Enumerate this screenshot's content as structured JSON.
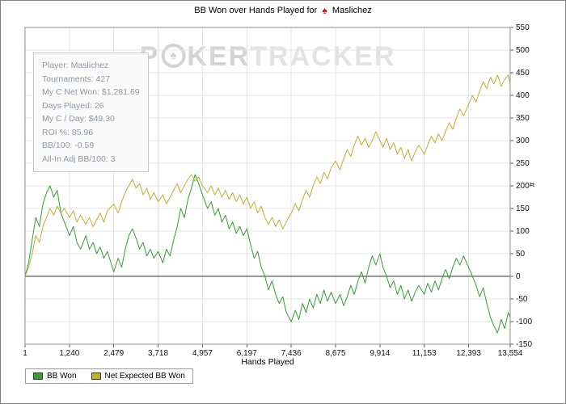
{
  "title": {
    "prefix": "BB Won over Hands Played for",
    "player": "Maslichez",
    "logo_glyph": "♠"
  },
  "watermark": {
    "p1": "P",
    "p2": "KER",
    "p3": "TRACKER",
    "spade_glyph": "♠"
  },
  "stats": {
    "lines": [
      "Player: Maslichez",
      "Tournaments: 427",
      "My C Net Won: $1,281.69",
      "Days Played: 26",
      "My C / Day: $49.30",
      "ROI %: 85.96",
      "BB/100: -0.59",
      "All-In Adj BB/100: 3"
    ]
  },
  "axes": {
    "x_title": "Hands Played",
    "y_title": "#"
  },
  "legend": {
    "items": [
      {
        "label": "BB Won"
      },
      {
        "label": "Net Expected BB Won"
      }
    ]
  },
  "colors": {
    "bb_won_line": "#3a9a3a",
    "net_expected_line": "#c2ae35",
    "grid": "#e4e4e4",
    "zero_line": "#333333",
    "plot_border": "#8c8c8c",
    "tick": "#555555",
    "title_logo": "#c01818",
    "watermark": "#d4d4d4"
  },
  "chart_data": {
    "type": "line",
    "title": "BB Won over Hands Played for Maslichez",
    "xlabel": "Hands Played",
    "ylabel": "#",
    "xlim": [
      1,
      13554
    ],
    "ylim": [
      -150,
      550
    ],
    "grid": true,
    "legend_position": "bottom-left",
    "x_ticks": {
      "values": [
        1,
        1240,
        2479,
        3718,
        4957,
        6197,
        7436,
        8675,
        9914,
        11153,
        12393,
        13554
      ],
      "labels": [
        "1",
        "1,240",
        "2,479",
        "3,718",
        "4,957",
        "6,197",
        "7,436",
        "8,675",
        "9,914",
        "11,153",
        "12,393",
        "13,554"
      ]
    },
    "y_ticks": [
      -150,
      -100,
      -50,
      0,
      50,
      100,
      150,
      200,
      250,
      300,
      350,
      400,
      450,
      500,
      550
    ],
    "x": [
      1,
      100,
      200,
      300,
      400,
      500,
      600,
      700,
      800,
      900,
      1000,
      1100,
      1240,
      1350,
      1450,
      1550,
      1700,
      1800,
      1900,
      2000,
      2100,
      2200,
      2300,
      2479,
      2600,
      2700,
      2800,
      2900,
      3000,
      3100,
      3200,
      3300,
      3400,
      3500,
      3600,
      3718,
      3850,
      3950,
      4050,
      4150,
      4250,
      4350,
      4450,
      4550,
      4650,
      4750,
      4850,
      4957,
      5100,
      5200,
      5300,
      5400,
      5500,
      5600,
      5700,
      5800,
      5900,
      6000,
      6100,
      6197,
      6300,
      6400,
      6500,
      6600,
      6700,
      6800,
      6900,
      7000,
      7100,
      7200,
      7300,
      7436,
      7550,
      7650,
      7750,
      7850,
      7950,
      8050,
      8150,
      8250,
      8350,
      8450,
      8550,
      8675,
      8800,
      8900,
      9000,
      9100,
      9200,
      9300,
      9400,
      9500,
      9600,
      9700,
      9800,
      9914,
      10000,
      10100,
      10200,
      10300,
      10400,
      10500,
      10600,
      10700,
      10800,
      10900,
      11000,
      11153,
      11250,
      11350,
      11450,
      11550,
      11650,
      11750,
      11850,
      11950,
      12050,
      12150,
      12250,
      12393,
      12500,
      12600,
      12700,
      12800,
      12900,
      13000,
      13100,
      13200,
      13300,
      13400,
      13500,
      13554
    ],
    "series": [
      {
        "name": "BB Won",
        "color": "#3a9a3a",
        "values": [
          0,
          30,
          80,
          130,
          110,
          160,
          185,
          200,
          175,
          190,
          140,
          120,
          90,
          110,
          75,
          60,
          90,
          60,
          75,
          50,
          65,
          40,
          55,
          10,
          40,
          20,
          60,
          90,
          105,
          85,
          60,
          75,
          45,
          60,
          40,
          55,
          30,
          60,
          45,
          80,
          110,
          150,
          130,
          170,
          195,
          225,
          205,
          180,
          150,
          165,
          135,
          150,
          120,
          135,
          105,
          120,
          95,
          110,
          90,
          105,
          70,
          40,
          55,
          20,
          0,
          -30,
          -10,
          -40,
          -60,
          -45,
          -80,
          -100,
          -75,
          -95,
          -60,
          -80,
          -50,
          -70,
          -40,
          -60,
          -30,
          -55,
          -35,
          -60,
          -40,
          -65,
          -45,
          -20,
          -40,
          -10,
          10,
          -15,
          20,
          45,
          25,
          50,
          20,
          0,
          -25,
          -10,
          -40,
          -20,
          -50,
          -30,
          -55,
          -35,
          -20,
          -40,
          -15,
          -35,
          -10,
          -30,
          -5,
          15,
          -5,
          20,
          40,
          25,
          45,
          20,
          0,
          -20,
          -45,
          -25,
          -60,
          -90,
          -110,
          -125,
          -95,
          -115,
          -80,
          -90
        ]
      },
      {
        "name": "Net Expected BB Won",
        "color": "#c2ae35",
        "values": [
          0,
          20,
          50,
          90,
          75,
          110,
          130,
          150,
          135,
          155,
          140,
          150,
          130,
          145,
          120,
          135,
          115,
          130,
          110,
          125,
          140,
          120,
          145,
          160,
          140,
          165,
          185,
          200,
          215,
          195,
          205,
          180,
          195,
          170,
          185,
          165,
          180,
          160,
          175,
          190,
          205,
          185,
          200,
          215,
          225,
          210,
          220,
          200,
          185,
          200,
          180,
          195,
          175,
          190,
          170,
          185,
          165,
          180,
          160,
          175,
          150,
          165,
          140,
          155,
          130,
          115,
          130,
          110,
          125,
          105,
          120,
          140,
          160,
          145,
          170,
          190,
          175,
          200,
          220,
          205,
          230,
          215,
          240,
          255,
          235,
          260,
          280,
          265,
          290,
          310,
          290,
          305,
          285,
          300,
          320,
          300,
          285,
          305,
          280,
          295,
          270,
          285,
          260,
          280,
          255,
          275,
          290,
          270,
          290,
          310,
          295,
          315,
          300,
          320,
          340,
          325,
          350,
          370,
          355,
          380,
          400,
          385,
          410,
          430,
          415,
          440,
          425,
          445,
          420,
          435,
          445,
          425
        ]
      }
    ]
  }
}
